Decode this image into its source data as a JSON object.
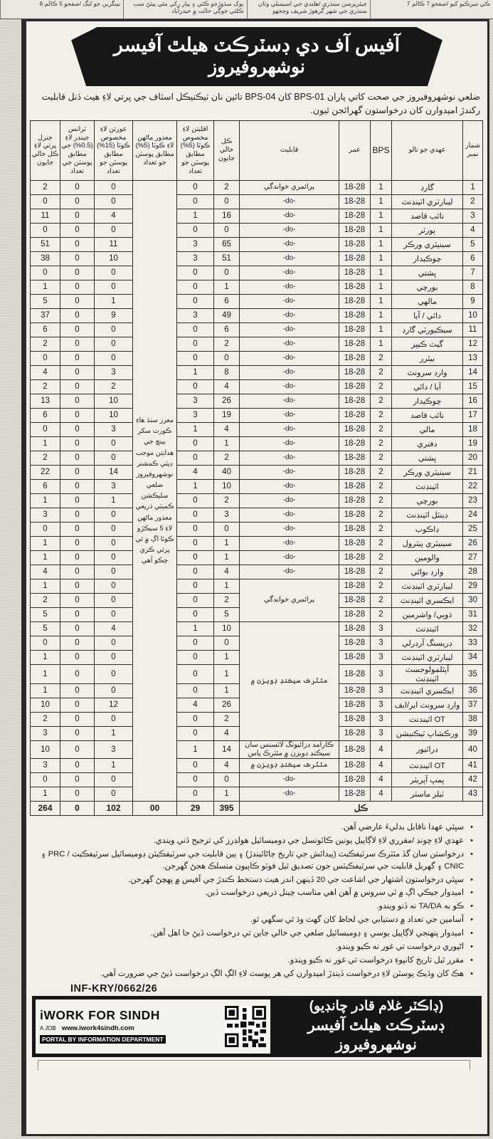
{
  "newspaper_strip": {
    "segments": [
      "ڪي سرڪيو کيو /صفحو 7 ڪالم 7",
      "چيئرپرسن سنڌري /هلندي جي اسيمبلي وٽان سنڌري جي شهر گرهوڙ شريف وڃجهو",
      "پوک سڌوڙجو ڪئي ۽ پيار رکي مٿي پيئڻ سب ڪلٽي جوڳي حالت ۾ حيدرآباد",
      "نينگرين جو لنگ /صفحو 5 ڪالم 6"
    ]
  },
  "header": {
    "line1": "آفيس آف دي ڊسٽرڪٽ هيلٿ آفيسر",
    "line2": "نوشهروفيروز"
  },
  "intro": {
    "text": "ضلعي نوشهروفيروز جي صحت کاتي پاران BPS-01 کان BPS-04 تائين نان ٽيڪنيڪل اسٽاف جي ڀرتي لاءِ هيٺ ڏنل قابليت رکندڙ اميدوارن کان درخواستون گهرائجن ٿيون."
  },
  "table": {
    "headers": {
      "sn": "شمار نمبر",
      "post": "عهدي جو نالو",
      "bps": "BPS",
      "age": "عمر",
      "qual": "قابليت",
      "total": "ڪل خالي جايون",
      "minorities": "اقليتن لاءِ مخصوص ڪوٽا (5%) مطابق پوسٽن جو تعداد",
      "disabled": "معذور ماڻهن لاءِ ڪوٽا (5%) مطابق پوسٽن جو تعداد",
      "women": "عورتن لاءِ مخصوص ڪوٽا (15%) مطابق پوسٽن جو تعداد",
      "transgender": "ٽرانس جينڊر لاءِ (0.5%) جي مطابق پوسٽن جي تعداد",
      "general": "جنرل ڀرتي لاءِ ڪل خالي جايون"
    },
    "disabled_note": "معزز سنڌ هاءِ ڪورٽ سکر بينچ جي هدايتن موجب ڊپٽي ڪمشنر نوشهروفيروز ضلعي سليڪشن ڪميٽي ذريعي معذور ماڻهن لاءِ 5 سيڪڙو ڪوٽا اڳ ۾ ئي ڀرتي ڪري چڪو آهي",
    "rows": [
      {
        "sn": "1",
        "post": "گارڊ",
        "bps": "1",
        "age": "18-28",
        "qual": "پرائمري خواندگي",
        "total": "2",
        "min": "0",
        "women": "0",
        "trans": "0",
        "gen": "2"
      },
      {
        "sn": "2",
        "post": "ليبارٽري اٽينڊنٽ",
        "bps": "1",
        "age": "18-28",
        "qual": "-do-",
        "total": "0",
        "min": "0",
        "women": "0",
        "trans": "0",
        "gen": "0"
      },
      {
        "sn": "3",
        "post": "نائب قاصد",
        "bps": "1",
        "age": "18-28",
        "qual": "-do-",
        "total": "16",
        "min": "1",
        "women": "4",
        "trans": "0",
        "gen": "11"
      },
      {
        "sn": "4",
        "post": "پورٽر",
        "bps": "1",
        "age": "18-28",
        "qual": "-do-",
        "total": "0",
        "min": "0",
        "women": "0",
        "trans": "0",
        "gen": "0"
      },
      {
        "sn": "5",
        "post": "سينيٽري ورڪر",
        "bps": "1",
        "age": "18-28",
        "qual": "-do-",
        "total": "65",
        "min": "3",
        "women": "11",
        "trans": "0",
        "gen": "51"
      },
      {
        "sn": "6",
        "post": "چوڪيدار",
        "bps": "1",
        "age": "18-28",
        "qual": "-do-",
        "total": "51",
        "min": "3",
        "women": "10",
        "trans": "0",
        "gen": "38"
      },
      {
        "sn": "7",
        "post": "ڀشتي",
        "bps": "1",
        "age": "18-28",
        "qual": "-do-",
        "total": "0",
        "min": "0",
        "women": "0",
        "trans": "0",
        "gen": "0"
      },
      {
        "sn": "8",
        "post": "بورچي",
        "bps": "1",
        "age": "18-28",
        "qual": "-do-",
        "total": "1",
        "min": "0",
        "women": "0",
        "trans": "0",
        "gen": "1"
      },
      {
        "sn": "9",
        "post": "مالهي",
        "bps": "1",
        "age": "18-28",
        "qual": "-do-",
        "total": "6",
        "min": "0",
        "women": "1",
        "trans": "0",
        "gen": "5"
      },
      {
        "sn": "10",
        "post": "دائي / آيا",
        "bps": "1",
        "age": "18-28",
        "qual": "-do-",
        "total": "49",
        "min": "3",
        "women": "9",
        "trans": "0",
        "gen": "37"
      },
      {
        "sn": "11",
        "post": "سيڪيورٽي گارڊ",
        "bps": "1",
        "age": "18-28",
        "qual": "-do-",
        "total": "6",
        "min": "0",
        "women": "0",
        "trans": "0",
        "gen": "6"
      },
      {
        "sn": "12",
        "post": "گيٽ ڪيپر",
        "bps": "1",
        "age": "18-28",
        "qual": "-do-",
        "total": "2",
        "min": "0",
        "women": "0",
        "trans": "0",
        "gen": "2"
      },
      {
        "sn": "13",
        "post": "بيئرر",
        "bps": "2",
        "age": "18-28",
        "qual": "-do-",
        "total": "0",
        "min": "0",
        "women": "0",
        "trans": "0",
        "gen": "0"
      },
      {
        "sn": "14",
        "post": "وارڊ سرونٽ",
        "bps": "2",
        "age": "18-28",
        "qual": "-do-",
        "total": "8",
        "min": "1",
        "women": "3",
        "trans": "0",
        "gen": "4"
      },
      {
        "sn": "15",
        "post": "آيا / دائي",
        "bps": "2",
        "age": "18-28",
        "qual": "-do-",
        "total": "4",
        "min": "0",
        "women": "2",
        "trans": "0",
        "gen": "2"
      },
      {
        "sn": "16",
        "post": "چوڪيدار",
        "bps": "2",
        "age": "18-28",
        "qual": "-do-",
        "total": "26",
        "min": "3",
        "women": "10",
        "trans": "0",
        "gen": "13"
      },
      {
        "sn": "17",
        "post": "نائب قاصد",
        "bps": "2",
        "age": "18-28",
        "qual": "-do-",
        "total": "19",
        "min": "3",
        "women": "10",
        "trans": "0",
        "gen": "6"
      },
      {
        "sn": "18",
        "post": "مالي",
        "bps": "2",
        "age": "18-28",
        "qual": "-do-",
        "total": "4",
        "min": "1",
        "women": "3",
        "trans": "0",
        "gen": "0"
      },
      {
        "sn": "19",
        "post": "دفتري",
        "bps": "2",
        "age": "18-28",
        "qual": "-do-",
        "total": "1",
        "min": "0",
        "women": "0",
        "trans": "0",
        "gen": "1"
      },
      {
        "sn": "20",
        "post": "ڀشتي",
        "bps": "2",
        "age": "18-28",
        "qual": "-do-",
        "total": "2",
        "min": "0",
        "women": "0",
        "trans": "0",
        "gen": "2"
      },
      {
        "sn": "21",
        "post": "سينيٽري ورڪر",
        "bps": "2",
        "age": "18-28",
        "qual": "-do-",
        "total": "40",
        "min": "4",
        "women": "14",
        "trans": "0",
        "gen": "22"
      },
      {
        "sn": "22",
        "post": "اٽينڊنٽ",
        "bps": "2",
        "age": "18-28",
        "qual": "-do-",
        "total": "10",
        "min": "1",
        "women": "3",
        "trans": "0",
        "gen": "6"
      },
      {
        "sn": "23",
        "post": "بورچي",
        "bps": "2",
        "age": "18-28",
        "qual": "-do-",
        "total": "2",
        "min": "0",
        "women": "1",
        "trans": "0",
        "gen": "1"
      },
      {
        "sn": "24",
        "post": "ڊينٽل اٽينڊنٽ",
        "bps": "2",
        "age": "18-28",
        "qual": "-do-",
        "total": "3",
        "min": "0",
        "women": "0",
        "trans": "0",
        "gen": "3"
      },
      {
        "sn": "25",
        "post": "ڊاڪوب",
        "bps": "2",
        "age": "18-28",
        "qual": "-do-",
        "total": "0",
        "min": "0",
        "women": "0",
        "trans": "0",
        "gen": "0"
      },
      {
        "sn": "26",
        "post": "سينيٽري پيٽرول",
        "bps": "2",
        "age": "18-28",
        "qual": "-do-",
        "total": "1",
        "min": "0",
        "women": "0",
        "trans": "0",
        "gen": "1"
      },
      {
        "sn": "27",
        "post": "والومين",
        "bps": "2",
        "age": "18-28",
        "qual": "-do-",
        "total": "1",
        "min": "0",
        "women": "0",
        "trans": "0",
        "gen": "1"
      },
      {
        "sn": "28",
        "post": "وارڊ بوائي",
        "bps": "2",
        "age": "18-28",
        "qual": "-do-",
        "total": "4",
        "min": "0",
        "women": "0",
        "trans": "0",
        "gen": "4"
      },
      {
        "sn": "29",
        "post": "ليبارٽري اٽينڊنٽ",
        "bps": "2",
        "age": "18-28",
        "qual": "پرائمري خواندگي",
        "qspan": 3,
        "total": "1",
        "min": "0",
        "women": "0",
        "trans": "0",
        "gen": "1"
      },
      {
        "sn": "30",
        "post": "ايڪسري اٽينڊنٽ",
        "bps": "2",
        "age": "18-28",
        "qual": null,
        "total": "2",
        "min": "0",
        "women": "0",
        "trans": "0",
        "gen": "2"
      },
      {
        "sn": "31",
        "post": "ڌوٻي/ واشرمين",
        "bps": "2",
        "age": "18-28",
        "qual": null,
        "total": "5",
        "min": "0",
        "women": "0",
        "trans": "0",
        "gen": "5"
      },
      {
        "sn": "32",
        "post": "اٽينڊنٽ",
        "bps": "3",
        "age": "18-28",
        "qual": "مئٽرڪ سيڪنڊ ڊويزن ۾",
        "qspan": 8,
        "total": "10",
        "min": "1",
        "women": "4",
        "trans": "0",
        "gen": "5"
      },
      {
        "sn": "33",
        "post": "ڊريسنگ آرڊرلي",
        "bps": "3",
        "age": "18-28",
        "qual": null,
        "total": "0",
        "min": "0",
        "women": "0",
        "trans": "0",
        "gen": "0"
      },
      {
        "sn": "34",
        "post": "ليبارٽري اٽينڊنٽ",
        "bps": "3",
        "age": "18-28",
        "qual": null,
        "total": "1",
        "min": "0",
        "women": "0",
        "trans": "0",
        "gen": "1"
      },
      {
        "sn": "35",
        "post": "آپٿلمولوجسٽ اٽينڊنٽ",
        "bps": "3",
        "age": "18-28",
        "qual": null,
        "total": "1",
        "min": "0",
        "women": "0",
        "trans": "0",
        "gen": "1"
      },
      {
        "sn": "36",
        "post": "ايڪسري اٽينڊنٽ",
        "bps": "3",
        "age": "18-28",
        "qual": null,
        "total": "1",
        "min": "0",
        "women": "0",
        "trans": "0",
        "gen": "1"
      },
      {
        "sn": "37",
        "post": "وارڊ سرونٽ اير/ايف",
        "bps": "3",
        "age": "18-28",
        "qual": null,
        "total": "26",
        "min": "4",
        "women": "12",
        "trans": "0",
        "gen": "10"
      },
      {
        "sn": "38",
        "post": "OT اٽينڊنٽ",
        "bps": "3",
        "age": "18-28",
        "qual": null,
        "total": "2",
        "min": "0",
        "women": "0",
        "trans": "0",
        "gen": "2"
      },
      {
        "sn": "39",
        "post": "ورڪشاپ ٽيڪنيشن",
        "bps": "3",
        "age": "18-28",
        "qual": null,
        "total": "4",
        "min": "0",
        "women": "1",
        "trans": "0",
        "gen": "3"
      },
      {
        "sn": "40",
        "post": "ڊرائيور",
        "bps": "4",
        "age": "18-28",
        "qual": "ڪارآمد ڊرائيونگ لائسنس سان سيڪنڊ ڊويزن ۾ مئٽرڪ پاس",
        "total": "14",
        "min": "1",
        "women": "3",
        "trans": "0",
        "gen": "10"
      },
      {
        "sn": "41",
        "post": "OT اٽينڊنٽ",
        "bps": "4",
        "age": "18-28",
        "qual": "مئٽرڪ سيڪنڊ ڊويزن ۾",
        "total": "4",
        "min": "0",
        "women": "1",
        "trans": "0",
        "gen": "3"
      },
      {
        "sn": "42",
        "post": "پمپ آپريٽر",
        "bps": "4",
        "age": "18-28",
        "qual": "-do-",
        "total": "0",
        "min": "0",
        "women": "0",
        "trans": "0",
        "gen": "0"
      },
      {
        "sn": "43",
        "post": "ٽيلر ماسٽر",
        "bps": "4",
        "age": "18-28",
        "qual": "-do-",
        "total": "1",
        "min": "0",
        "women": "0",
        "trans": "0",
        "gen": "1"
      }
    ],
    "totals": {
      "label": "ڪل",
      "total": "395",
      "min": "29",
      "disabled": "00",
      "women": "102",
      "trans": "0",
      "gen": "264"
    }
  },
  "notes": {
    "items": [
      "سڀئي عهدا ناقابل بدليءَ عارضي آهن.",
      "عهدي لاءِ چونڊ /مقرري لاءِ لاڳاپيل يونين ڪائونسل جي ڊوميسائيل هولڊرز کي ترجيح ڏني ويندي.",
      "درخواستن سان گڏ مئٽرڪ سرٽيفڪيٽ (پيدائش جي تاريخ ڄاڻائيندڙ) ۽ ٻين قابليت جي سرٽيفڪيٽن ڊوميسائيل سرٽيفڪيٽ / PRC ۽ CNIC ۽ گهربل قابليت جي سرٽيفڪيٽس جون تصديق ٿيل فوٽو ڪاپيون منسلڪ هجڻ گهرجن.",
      "سڀئي درخواستون اشتهار جي اشاعت جي 20 ڏينهن اندر هيٺ دستخط ڪندڙ جي آفيس ۾ پهچڻ گهرجن.",
      "اميدوار جيڪي اڳ ۾ ئي سروس ۾ آهن اهي مناسب چينل ذريعي درخواست ڏين.",
      "ڪو به TA/DA نه ڏنو ويندو.",
      "آسامين جي تعداد ۾ دستيابي جي لحاظ کان گهٽ وڌ ٿي سگهي ٿو.",
      "اميدوار پنهنجي لاڳاپيل يوسي ۽ ڊوميسائيل ضلعي جي خالي جاين تي درخواست ڏيڻ جا اهل آهن.",
      "اڻپوري درخواست تي غور نه ڪيو ويندو.",
      "مقرر ٿيل تاريخ کانپوءِ درخواست تي غور نه ڪيو ويندو.",
      "هڪ کان وڌيڪ پوسٽن لاءِ درخواست ڏيندڙ اميدوارن کي هر پوسٽ لاءِ الڳ الڳ درخواست ڏيڻ جي ضرورت آهي."
    ]
  },
  "reference": {
    "number": "INF-KRY/0662/26"
  },
  "footer_banner": {
    "signatory": "(ڊاڪٽر غلام قادر چانڊيو)",
    "designation": "ڊسٽرڪٽ هيلٿ آفيسر نوشهروفيروز",
    "logo_title": "iWORK FOR SINDH",
    "logo_tag1": "A JOB",
    "logo_url": "www.iwork4sindh.com",
    "logo_tag2": "PORTAL BY INFORMATION DEPARTMENT",
    "qr_icon": "qr-code-icon"
  }
}
